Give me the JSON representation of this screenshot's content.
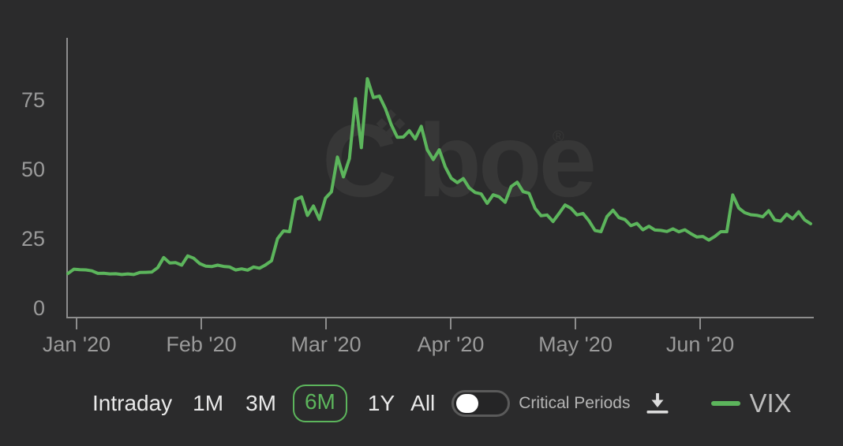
{
  "colors": {
    "background": "#2b2b2c",
    "line_green": "#5cb55c",
    "axis_gray": "#8d8d8d",
    "label_gray": "#9a9a9a",
    "watermark_gray": "#373737",
    "text_light": "#e9e9e9",
    "text_muted": "#b5b5b5",
    "knob_white": "#ffffff"
  },
  "watermark": {
    "c": "C",
    "rest": "boe",
    "reg": "®"
  },
  "controls": {
    "ranges": [
      {
        "id": "intraday",
        "label": "Intraday",
        "selected": false
      },
      {
        "id": "1m",
        "label": "1M",
        "selected": false
      },
      {
        "id": "3m",
        "label": "3M",
        "selected": false
      },
      {
        "id": "6m",
        "label": "6M",
        "selected": true
      },
      {
        "id": "1y",
        "label": "1Y",
        "selected": false
      },
      {
        "id": "all",
        "label": "All",
        "selected": false
      }
    ],
    "selected_range": "6M",
    "critical_periods": {
      "label": "Critical Periods",
      "enabled": false
    },
    "download_icon": "download-icon",
    "legend": {
      "label": "VIX",
      "color": "#5cb55c"
    }
  },
  "chart_data": {
    "type": "line",
    "title": "",
    "xlabel": "",
    "ylabel": "",
    "grid": false,
    "legend_position": "bottom-right",
    "xticks": [
      "Jan '20",
      "Feb '20",
      "Mar '20",
      "Apr '20",
      "May '20",
      "Jun '20"
    ],
    "yticks": [
      0,
      25,
      50,
      75
    ],
    "ylim": [
      0,
      85
    ],
    "series": [
      {
        "name": "VIX",
        "color": "#5cb55c",
        "x_dates": [
          "2020-01-02",
          "2020-01-03",
          "2020-01-06",
          "2020-01-07",
          "2020-01-08",
          "2020-01-09",
          "2020-01-10",
          "2020-01-13",
          "2020-01-14",
          "2020-01-15",
          "2020-01-16",
          "2020-01-17",
          "2020-01-21",
          "2020-01-22",
          "2020-01-23",
          "2020-01-24",
          "2020-01-27",
          "2020-01-28",
          "2020-01-29",
          "2020-01-30",
          "2020-01-31",
          "2020-02-03",
          "2020-02-04",
          "2020-02-05",
          "2020-02-06",
          "2020-02-07",
          "2020-02-10",
          "2020-02-11",
          "2020-02-12",
          "2020-02-13",
          "2020-02-14",
          "2020-02-18",
          "2020-02-19",
          "2020-02-20",
          "2020-02-21",
          "2020-02-24",
          "2020-02-25",
          "2020-02-26",
          "2020-02-27",
          "2020-02-28",
          "2020-03-02",
          "2020-03-03",
          "2020-03-04",
          "2020-03-05",
          "2020-03-06",
          "2020-03-09",
          "2020-03-10",
          "2020-03-11",
          "2020-03-12",
          "2020-03-13",
          "2020-03-16",
          "2020-03-17",
          "2020-03-18",
          "2020-03-19",
          "2020-03-20",
          "2020-03-23",
          "2020-03-24",
          "2020-03-25",
          "2020-03-26",
          "2020-03-27",
          "2020-03-30",
          "2020-03-31",
          "2020-04-01",
          "2020-04-02",
          "2020-04-03",
          "2020-04-06",
          "2020-04-07",
          "2020-04-08",
          "2020-04-09",
          "2020-04-13",
          "2020-04-14",
          "2020-04-15",
          "2020-04-16",
          "2020-04-17",
          "2020-04-20",
          "2020-04-21",
          "2020-04-22",
          "2020-04-23",
          "2020-04-24",
          "2020-04-27",
          "2020-04-28",
          "2020-04-29",
          "2020-04-30",
          "2020-05-01",
          "2020-05-04",
          "2020-05-05",
          "2020-05-06",
          "2020-05-07",
          "2020-05-08",
          "2020-05-11",
          "2020-05-12",
          "2020-05-13",
          "2020-05-14",
          "2020-05-15",
          "2020-05-18",
          "2020-05-19",
          "2020-05-20",
          "2020-05-21",
          "2020-05-22",
          "2020-05-26",
          "2020-05-27",
          "2020-05-28",
          "2020-05-29",
          "2020-06-01",
          "2020-06-02",
          "2020-06-03",
          "2020-06-04",
          "2020-06-05",
          "2020-06-08",
          "2020-06-09",
          "2020-06-10",
          "2020-06-11",
          "2020-06-12",
          "2020-06-15",
          "2020-06-16",
          "2020-06-17",
          "2020-06-18",
          "2020-06-19",
          "2020-06-22",
          "2020-06-23",
          "2020-06-24",
          "2020-06-25",
          "2020-06-26",
          "2020-06-29",
          "2020-06-30"
        ],
        "values": [
          12.47,
          14.02,
          13.85,
          13.79,
          13.45,
          12.54,
          12.56,
          12.32,
          12.39,
          12.1,
          12.32,
          12.1,
          12.85,
          12.91,
          12.98,
          14.56,
          18.23,
          16.28,
          16.39,
          15.49,
          18.84,
          17.97,
          16.05,
          15.15,
          14.96,
          15.47,
          15.04,
          14.83,
          13.74,
          14.15,
          13.68,
          14.83,
          14.38,
          15.56,
          17.08,
          25.03,
          27.85,
          27.56,
          39.16,
          40.11,
          33.42,
          36.82,
          31.99,
          39.62,
          41.94,
          54.46,
          47.3,
          53.9,
          75.47,
          57.83,
          82.69,
          75.91,
          76.45,
          72.0,
          66.04,
          61.59,
          61.67,
          63.95,
          61.0,
          65.54,
          57.08,
          53.54,
          57.06,
          50.91,
          46.8,
          45.24,
          46.7,
          43.35,
          41.67,
          41.17,
          37.76,
          40.84,
          40.11,
          38.15,
          43.83,
          45.41,
          41.98,
          41.38,
          35.93,
          33.29,
          33.57,
          31.23,
          34.15,
          37.19,
          35.97,
          33.61,
          34.12,
          31.44,
          27.98,
          27.57,
          33.04,
          35.28,
          32.61,
          31.89,
          29.72,
          30.53,
          28.23,
          29.53,
          28.16,
          28.01,
          27.62,
          28.59,
          27.51,
          28.23,
          26.84,
          25.66,
          25.81,
          24.52,
          25.81,
          27.57,
          27.57,
          40.79,
          36.09,
          34.4,
          33.67,
          33.47,
          32.94,
          35.12,
          31.77,
          31.37,
          33.84,
          32.22,
          34.73,
          31.78,
          30.43
        ]
      }
    ]
  }
}
